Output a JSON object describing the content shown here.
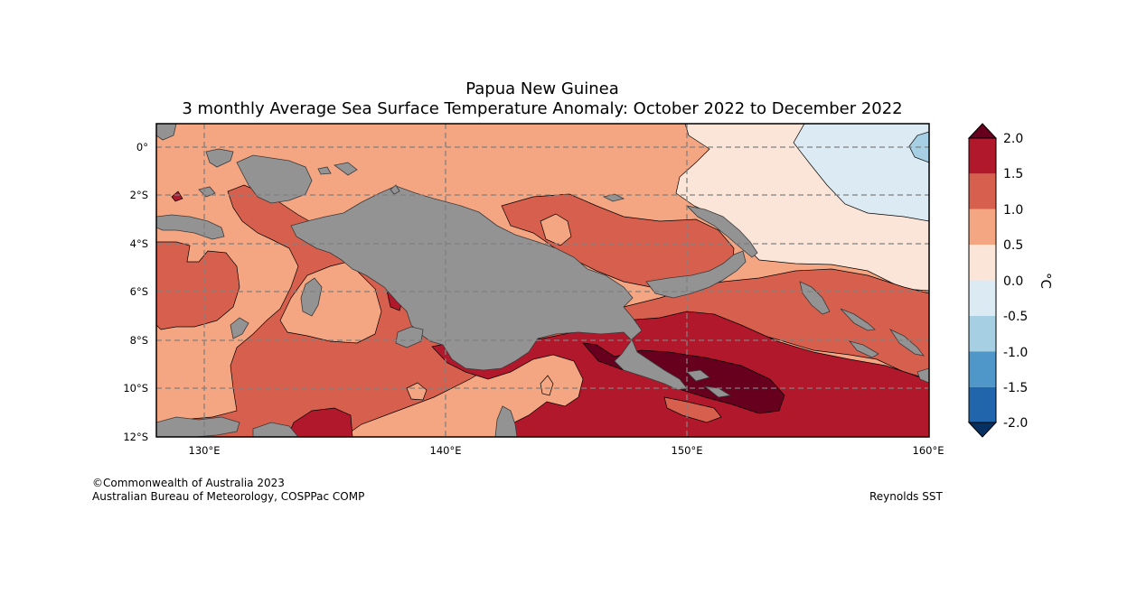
{
  "title": {
    "line1": "Papua New Guinea",
    "line2": "3 monthly Average Sea Surface Temperature Anomaly: October 2022 to December 2022"
  },
  "axes": {
    "lon_labels": [
      "130°E",
      "140°E",
      "150°E",
      "160°E"
    ],
    "lon_values": [
      130,
      140,
      150,
      160
    ],
    "lat_labels": [
      "0°",
      "2°S",
      "4°S",
      "6°S",
      "8°S",
      "10°S",
      "12°S"
    ],
    "lat_values": [
      0,
      -2,
      -4,
      -6,
      -8,
      -10,
      -12
    ],
    "lon_range": [
      128,
      160
    ],
    "lat_range": [
      -12,
      1
    ],
    "gridlines": "dashed"
  },
  "colorbar": {
    "unit_label": "°C",
    "tick_labels": [
      "2.0",
      "1.5",
      "1.0",
      "0.5",
      "0.0",
      "-0.5",
      "-1.0",
      "-1.5",
      "-2.0"
    ],
    "levels": [
      {
        "range": "1.5 to 2.0",
        "color": "#b2182b"
      },
      {
        "range": "1.0 to 1.5",
        "color": "#d6604d"
      },
      {
        "range": "0.5 to 1.0",
        "color": "#f4a582"
      },
      {
        "range": "0.0 to 0.5",
        "color": "#fbe5d9"
      },
      {
        "range": "-0.5 to 0.0",
        "color": "#dceaf3"
      },
      {
        "range": "-1.0 to -0.5",
        "color": "#a6cfe3"
      },
      {
        "range": "-1.5 to -1.0",
        "color": "#4f97c9"
      },
      {
        "range": "-2.0 to -1.5",
        "color": "#2166ac"
      }
    ],
    "over_color": "#67001f",
    "under_color": "#053061"
  },
  "colors": {
    "land": "#939393",
    "coast": "#3a3a3a",
    "grid": "#808080"
  },
  "footer": {
    "copyright": "©Commonwealth of Australia 2023",
    "agency": "Australian Bureau of Meteorology, COSPPac COMP",
    "source": "Reynolds SST"
  }
}
